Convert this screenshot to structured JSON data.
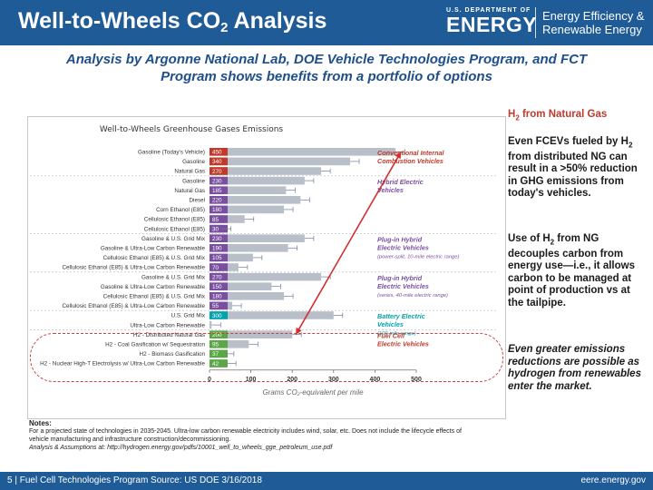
{
  "header": {
    "title_main": "Well-to-Wheels CO",
    "title_sub": "2",
    "title_end": " Analysis",
    "doe_top": "U.S. DEPARTMENT OF",
    "doe_name": "ENERGY",
    "eere_line1": "Energy Efficiency &",
    "eere_line2": "Renewable Energy"
  },
  "subtitle": {
    "line1": "Analysis by Argonne National Lab, DOE Vehicle Technologies Program, and FCT",
    "line2": "Program shows benefits from a portfolio of options"
  },
  "right_panel": {
    "heading_a": "H",
    "heading_sub": "2",
    "heading_b": " from Natural Gas",
    "p1_a": "Even FCEVs fueled by H",
    "p1_sub": "2",
    "p1_b": " from distributed NG can result in a >50% reduction in GHG emissions from today's vehicles.",
    "p2_a": "Use of H",
    "p2_sub": "2",
    "p2_b": " from NG decouples carbon from energy use—i.e., it allows carbon to be managed at point of production vs at the tailpipe.",
    "p3": "Even greater emissions reductions are possible as hydrogen from renewables enter the market."
  },
  "notes": {
    "heading": "Notes:",
    "line1": "For a projected state of technologies in 2035-2045. Ultra-low carbon renewable electricity includes wind, solar, etc. Does not include the lifecycle effects of vehicle manufacturing and infrastructure construction/decommissioning.",
    "line2": "Analysis & Assumptions at: http://hydrogen.energy.gov/pdfs/10001_well_to_wheels_gge_petroleum_use.pdf"
  },
  "footer": {
    "left": "5 | Fuel Cell Technologies Program Source: US DOE 3/16/2018",
    "right": "eere.energy.gov"
  },
  "chart_data": {
    "type": "bar",
    "title": "Well-to-Wheels  Greenhouse Gases Emissions",
    "xlabel": "Grams CO₂-equivalent per mile",
    "xlim": [
      0,
      500
    ],
    "xticks": [
      0,
      100,
      200,
      300,
      400,
      500
    ],
    "categories": [
      "Gasoline (Today's Vehicle)",
      "Gasoline",
      "Natural Gas",
      "Gasoline",
      "Natural Gas",
      "Diesel",
      "Corn Ethanol (E85)",
      "Cellulosic Ethanol (E85)",
      "Cellulosic Ethanol (E85)",
      "Gasoline & U.S. Grid Mix",
      "Gasoline & Ultra-Low Carbon Renewable",
      "Cellulosic Ethanol (E85) & U.S. Grid Mix",
      "Cellulosic Ethanol (E85) & Ultra-Low Carbon Renewable",
      "Gasoline & U.S. Grid Mix",
      "Gasoline & Ultra-Low Carbon Renewable",
      "Cellulosic Ethanol (E85) & U.S. Grid Mix",
      "Cellulosic Ethanol (E85) & Ultra-Low Carbon Renewable",
      "U.S. Grid Mix",
      "Ultra-Low Carbon Renewable",
      "H2 - Distributed Natural Gas",
      "H2 - Coal Gasification w/ Sequestration",
      "H2 - Biomass Gasification",
      "H2 - Nuclear High-T Electrolysis w/ Ultra-Low Carbon Renewable"
    ],
    "values": [
      450,
      340,
      270,
      230,
      185,
      220,
      180,
      85,
      30,
      230,
      190,
      105,
      70,
      270,
      150,
      180,
      55,
      300,
      5,
      200,
      95,
      37,
      42
    ],
    "value_labels": [
      "450",
      "340",
      "270",
      "230",
      "185",
      "220",
      "180",
      "85",
      "30",
      "230",
      "190",
      "105",
      "70",
      "270",
      "150",
      "180",
      "55",
      "300",
      "",
      "200",
      "95",
      "37",
      "42"
    ],
    "groups": [
      {
        "label": "Conventional Internal Combustion Vehicles",
        "note": "",
        "color": "#c0392b",
        "start": 0,
        "end": 2
      },
      {
        "label": "Hybrid Electric Vehicles",
        "note": "",
        "color": "#7b4fa0",
        "start": 3,
        "end": 8
      },
      {
        "label": "Plug-in Hybrid Electric Vehicles",
        "note": "(power-split, 10-mile electric range)",
        "color": "#7b4fa0",
        "start": 9,
        "end": 12
      },
      {
        "label": "Plug-in Hybrid Electric Vehicles",
        "note": "(series, 40-mile electric range)",
        "color": "#7b4fa0",
        "start": 13,
        "end": 16
      },
      {
        "label": "Battery Electric Vehicles",
        "note": "(100-mile range)",
        "color": "#00a3ad",
        "start": 17,
        "end": 18
      },
      {
        "label": "Fuel Cell Electric Vehicles",
        "note": "",
        "color": "#c0392b",
        "start": 19,
        "end": 22
      }
    ],
    "colors": {
      "bar": "#b9bfc9",
      "conventional": "#c0392b",
      "hybrid": "#7b4fa0",
      "battery": "#00a3ad",
      "fuelcell": "#c0392b",
      "label_box_conventional": "#c0392b",
      "label_box_hybrid": "#7b4fa0",
      "label_box_phev": "#7b4fa0",
      "label_box_bev": "#00a3ad",
      "label_box_fcev": "#5aa845",
      "arrow": "#d03030"
    },
    "grid": false,
    "legend": "none"
  }
}
